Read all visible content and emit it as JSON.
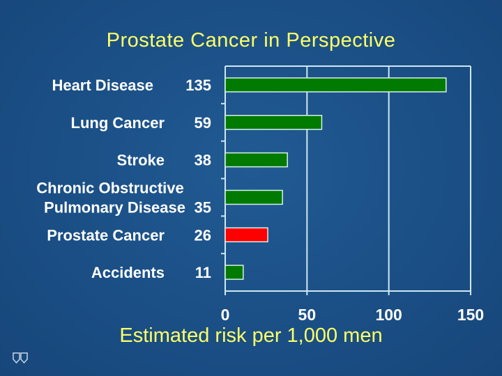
{
  "title": "Prostate Cancer in Perspective",
  "logo_text": "MAYO CLINIC",
  "chart_data": {
    "type": "bar",
    "orientation": "horizontal",
    "title": "Prostate Cancer in Perspective",
    "xlabel": "Estimated risk per 1,000 men",
    "ylabel": "",
    "categories": [
      {
        "lines": [
          "Heart Disease"
        ],
        "value_label": "135"
      },
      {
        "lines": [
          "Lung Cancer"
        ],
        "value_label": "59"
      },
      {
        "lines": [
          "Stroke"
        ],
        "value_label": "38"
      },
      {
        "lines": [
          "Chronic Obstructive",
          "Pulmonary Disease"
        ],
        "value_label": "35"
      },
      {
        "lines": [
          "Prostate Cancer"
        ],
        "value_label": "26"
      },
      {
        "lines": [
          "Accidents"
        ],
        "value_label": "11"
      }
    ],
    "values": [
      135,
      59,
      38,
      35,
      26,
      11
    ],
    "colors": [
      "#007a00",
      "#007a00",
      "#007a00",
      "#007a00",
      "#ff0000",
      "#007a00"
    ],
    "xlim": [
      0,
      150
    ],
    "xticks": [
      "0",
      "50",
      "100",
      "150"
    ],
    "grid": "vertical"
  }
}
